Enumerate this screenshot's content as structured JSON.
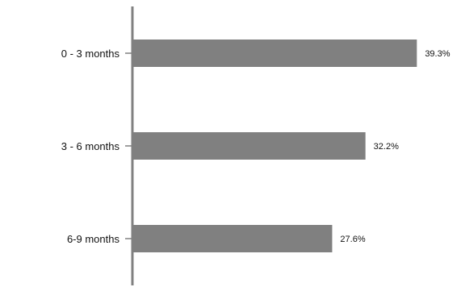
{
  "chart_data": {
    "type": "bar",
    "orientation": "horizontal",
    "categories": [
      "0 - 3 months",
      "3 - 6 months",
      "6-9 months"
    ],
    "values": [
      39.3,
      32.2,
      27.6
    ],
    "value_labels": [
      "39.3%",
      "32.2%",
      "27.6%"
    ],
    "unit": "%",
    "title": "",
    "xlabel": "",
    "ylabel": "",
    "xlim": [
      0,
      42.5
    ],
    "grid": false,
    "legend": "none",
    "bar_color": "#808080",
    "axis_color": "#808080"
  }
}
